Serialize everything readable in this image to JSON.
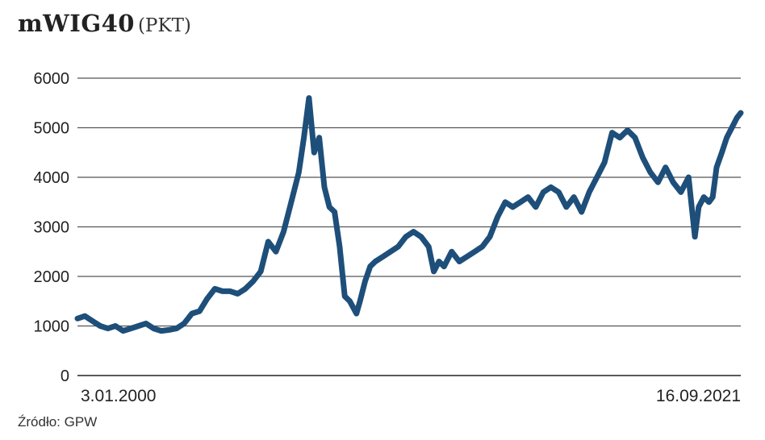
{
  "title": "mWIG40",
  "title_unit": "(PKT)",
  "source": "Źródło: GPW",
  "colors": {
    "line": "#1e4f7a",
    "grid": "#555555",
    "axis": "#222222"
  },
  "chart_data": {
    "type": "line",
    "title": "mWIG40",
    "xlabel": "",
    "ylabel": "",
    "ylim": [
      0,
      6000
    ],
    "yticks": [
      "0",
      "1000",
      "2000",
      "3000",
      "4000",
      "5000",
      "6000"
    ],
    "xlim": [
      "2000-01-03",
      "2021-09-16"
    ],
    "x_tick_labels": [
      "3.01.2000",
      "16.09.2021"
    ],
    "grid": "horizontal",
    "series": [
      {
        "x": [
          "2000-01-03",
          "2000-04-01",
          "2000-07-01",
          "2000-10-01",
          "2001-01-01",
          "2001-04-01",
          "2001-07-01",
          "2001-10-01",
          "2002-01-01",
          "2002-04-01",
          "2002-07-01",
          "2002-10-01",
          "2003-01-01",
          "2003-04-01",
          "2003-07-01",
          "2003-10-01",
          "2004-01-01",
          "2004-04-01",
          "2004-07-01",
          "2004-10-01",
          "2005-01-01",
          "2005-04-01",
          "2005-07-01",
          "2005-10-01",
          "2006-01-01",
          "2006-04-01",
          "2006-07-01",
          "2006-10-01",
          "2007-01-01",
          "2007-04-01",
          "2007-06-01",
          "2007-08-01",
          "2007-10-01",
          "2007-12-01",
          "2008-02-01",
          "2008-04-01",
          "2008-06-01",
          "2008-08-01",
          "2008-10-01",
          "2008-12-01",
          "2009-02-18",
          "2009-04-01",
          "2009-06-01",
          "2009-08-01",
          "2009-10-01",
          "2010-01-01",
          "2010-04-01",
          "2010-07-01",
          "2010-10-01",
          "2011-01-01",
          "2011-04-01",
          "2011-07-01",
          "2011-09-01",
          "2011-11-01",
          "2012-01-01",
          "2012-04-01",
          "2012-07-01",
          "2012-10-01",
          "2013-01-01",
          "2013-04-01",
          "2013-07-01",
          "2013-10-01",
          "2014-01-01",
          "2014-04-01",
          "2014-07-01",
          "2014-10-01",
          "2015-01-01",
          "2015-04-01",
          "2015-07-01",
          "2015-10-01",
          "2016-01-01",
          "2016-04-01",
          "2016-07-01",
          "2016-10-01",
          "2017-01-01",
          "2017-04-01",
          "2017-07-01",
          "2017-10-01",
          "2018-01-01",
          "2018-04-01",
          "2018-07-01",
          "2018-10-01",
          "2019-01-01",
          "2019-04-01",
          "2019-07-01",
          "2019-10-01",
          "2020-01-01",
          "2020-03-16",
          "2020-05-01",
          "2020-07-01",
          "2020-09-01",
          "2020-10-15",
          "2020-12-01",
          "2021-02-01",
          "2021-04-01",
          "2021-06-01",
          "2021-08-01",
          "2021-09-16"
        ],
        "values": [
          1150,
          1200,
          1100,
          1000,
          950,
          1000,
          900,
          950,
          1000,
          1050,
          950,
          900,
          920,
          950,
          1050,
          1250,
          1300,
          1550,
          1750,
          1700,
          1700,
          1650,
          1750,
          1900,
          2100,
          2700,
          2500,
          2900,
          3500,
          4100,
          4800,
          5600,
          4500,
          4800,
          3800,
          3400,
          3300,
          2600,
          1600,
          1500,
          1250,
          1500,
          1900,
          2200,
          2300,
          2400,
          2500,
          2600,
          2800,
          2900,
          2800,
          2600,
          2100,
          2300,
          2200,
          2500,
          2300,
          2400,
          2500,
          2600,
          2800,
          3200,
          3500,
          3400,
          3500,
          3600,
          3400,
          3700,
          3800,
          3700,
          3400,
          3600,
          3300,
          3700,
          4000,
          4300,
          4900,
          4800,
          4950,
          4800,
          4400,
          4100,
          3900,
          4200,
          3900,
          3700,
          4000,
          2800,
          3400,
          3600,
          3500,
          3600,
          4200,
          4500,
          4800,
          5000,
          5200,
          5300
        ]
      }
    ]
  }
}
